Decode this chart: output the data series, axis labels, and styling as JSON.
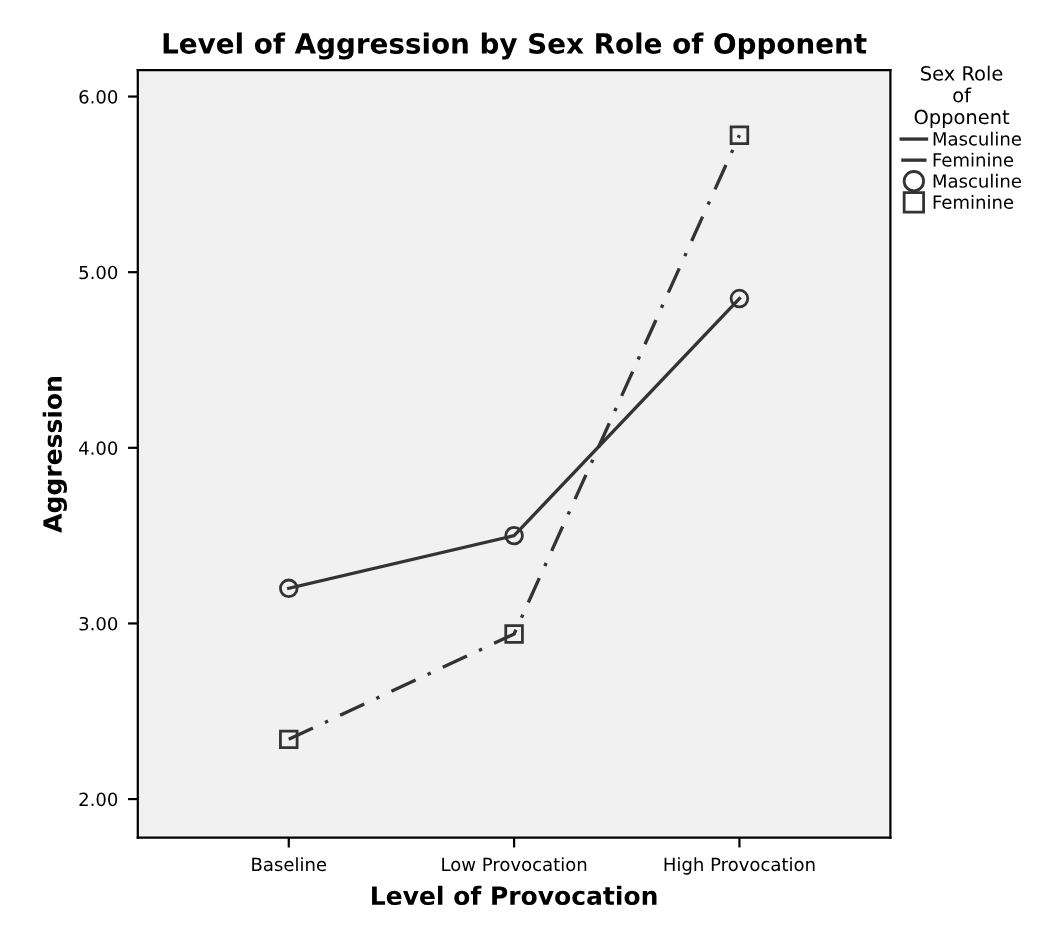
{
  "chart_data": {
    "type": "line",
    "title": "Level of Aggression by Sex Role of Opponent",
    "xlabel": "Level of Provocation",
    "ylabel": "Aggression",
    "legend_title": "Sex Role\nof\nOpponent",
    "categories": [
      "Baseline",
      "Low Provocation",
      "High Provocation"
    ],
    "series": [
      {
        "name": "Masculine",
        "color": "#333333",
        "values": [
          3.2,
          3.5,
          4.85
        ],
        "marker": "circle",
        "line_style": "solid"
      },
      {
        "name": "Feminine",
        "color": "#333333",
        "values": [
          2.34,
          2.94,
          5.78
        ],
        "marker": "square",
        "line_style": "dashdot"
      }
    ],
    "ylim": [
      1.78,
      6.15
    ],
    "yticks": [
      {
        "value": 2,
        "label": "2.00"
      },
      {
        "value": 3,
        "label": "3.00"
      },
      {
        "value": 4,
        "label": "4.00"
      },
      {
        "value": 5,
        "label": "5.00"
      },
      {
        "value": 6,
        "label": "6.00"
      }
    ],
    "grid": false,
    "legend": "right"
  }
}
